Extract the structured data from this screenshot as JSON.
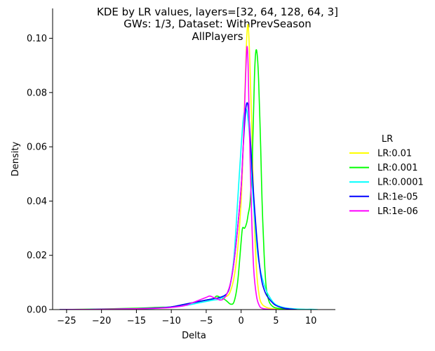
{
  "chart_data": {
    "type": "line",
    "title_lines": [
      "KDE by LR values, layers=[32, 64, 128, 64, 3]",
      "GWs: 1/3, Dataset: WithPrevSeason",
      "AllPlayers"
    ],
    "xlabel": "Delta",
    "ylabel": "Density",
    "xlim": [
      -27,
      13.5
    ],
    "ylim": [
      0,
      0.111
    ],
    "xticks": [
      -25,
      -20,
      -15,
      -10,
      -5,
      0,
      5,
      10
    ],
    "xtick_labels": [
      "−25",
      "−20",
      "−15",
      "−10",
      "−5",
      "0",
      "5",
      "10"
    ],
    "yticks": [
      0.0,
      0.02,
      0.04,
      0.06,
      0.08,
      0.1
    ],
    "ytick_labels": [
      "0.00",
      "0.02",
      "0.04",
      "0.06",
      "0.08",
      "0.10"
    ],
    "grid": false,
    "legend": {
      "title": "LR",
      "placement": "right"
    },
    "series": [
      {
        "name": "LR:0.01",
        "color": "#ffff00",
        "x": [
          -26,
          -20,
          -15,
          -12,
          -10,
          -8,
          -6,
          -5,
          -4,
          -3,
          -2,
          -1.5,
          -1,
          -0.5,
          0,
          0.3,
          0.6,
          0.8,
          1.0,
          1.2,
          1.5,
          1.8,
          2.2,
          2.6,
          3.0,
          3.5,
          4,
          5,
          6,
          8
        ],
        "y": [
          0.0,
          0.0001,
          0.0003,
          0.0006,
          0.001,
          0.002,
          0.003,
          0.0035,
          0.004,
          0.0045,
          0.005,
          0.007,
          0.012,
          0.022,
          0.04,
          0.06,
          0.085,
          0.1,
          0.105,
          0.095,
          0.07,
          0.04,
          0.015,
          0.005,
          0.002,
          0.001,
          0.0005,
          0.0002,
          0.0001,
          0.0
        ]
      },
      {
        "name": "LR:0.001",
        "color": "#00ff00",
        "x": [
          -26,
          -20,
          -15,
          -12,
          -10,
          -8,
          -6,
          -5,
          -4,
          -3.5,
          -3,
          -2.5,
          -2,
          -1.5,
          -1,
          -0.5,
          0,
          0.2,
          0.5,
          0.8,
          1.0,
          1.3,
          1.6,
          1.9,
          2.1,
          2.3,
          2.5,
          2.8,
          3.0,
          3.3,
          3.6,
          4,
          4.5,
          5,
          6,
          7,
          8,
          9
        ],
        "y": [
          0.0,
          0.0002,
          0.0005,
          0.0008,
          0.001,
          0.002,
          0.003,
          0.0035,
          0.004,
          0.005,
          0.0045,
          0.004,
          0.003,
          0.002,
          0.003,
          0.01,
          0.025,
          0.03,
          0.03,
          0.032,
          0.035,
          0.04,
          0.055,
          0.085,
          0.095,
          0.094,
          0.085,
          0.06,
          0.04,
          0.02,
          0.008,
          0.003,
          0.0012,
          0.0006,
          0.0003,
          0.0001,
          0.0001,
          0.0
        ]
      },
      {
        "name": "LR:0.0001",
        "color": "#00ffff",
        "x": [
          -26,
          -20,
          -15,
          -12,
          -10,
          -8,
          -6,
          -5,
          -4,
          -3,
          -2,
          -1.5,
          -1,
          -0.5,
          0,
          0.3,
          0.6,
          0.9,
          1.2,
          1.5,
          1.8,
          2.1,
          2.4,
          2.8,
          3.2,
          3.6,
          4,
          4.5,
          5,
          6,
          7,
          8,
          9,
          10,
          11
        ],
        "y": [
          0.0,
          0.0001,
          0.0002,
          0.0005,
          0.001,
          0.0015,
          0.0025,
          0.003,
          0.0035,
          0.004,
          0.006,
          0.01,
          0.02,
          0.04,
          0.06,
          0.07,
          0.074,
          0.072,
          0.064,
          0.05,
          0.038,
          0.028,
          0.02,
          0.014,
          0.01,
          0.007,
          0.005,
          0.003,
          0.0018,
          0.0008,
          0.0004,
          0.0002,
          0.0001,
          0.0001,
          0.0
        ]
      },
      {
        "name": "LR:1e-05",
        "color": "#0000ff",
        "x": [
          -26,
          -20,
          -15,
          -12,
          -10,
          -8,
          -6,
          -5,
          -4,
          -3,
          -2,
          -1.5,
          -1,
          -0.5,
          0,
          0.3,
          0.6,
          0.8,
          1.0,
          1.2,
          1.5,
          1.8,
          2.2,
          2.6,
          3.0,
          3.5,
          4,
          4.5,
          5,
          6,
          7,
          8
        ],
        "y": [
          0.0,
          0.0001,
          0.0003,
          0.0006,
          0.001,
          0.002,
          0.003,
          0.0035,
          0.004,
          0.0045,
          0.006,
          0.01,
          0.018,
          0.03,
          0.045,
          0.06,
          0.072,
          0.076,
          0.075,
          0.068,
          0.055,
          0.042,
          0.028,
          0.017,
          0.01,
          0.006,
          0.004,
          0.0025,
          0.0015,
          0.0006,
          0.0002,
          0.0
        ]
      },
      {
        "name": "LR:1e-06",
        "color": "#ff00ff",
        "x": [
          -26,
          -20,
          -15,
          -12,
          -10,
          -8,
          -7,
          -6,
          -5,
          -4.5,
          -4,
          -3.5,
          -3,
          -2.5,
          -2,
          -1.5,
          -1,
          -0.5,
          0,
          0.3,
          0.5,
          0.7,
          0.85,
          1.0,
          1.2,
          1.5,
          1.8,
          2.2,
          2.6,
          3,
          4,
          5
        ],
        "y": [
          0.0,
          0.0001,
          0.0003,
          0.0005,
          0.0008,
          0.0015,
          0.0025,
          0.0035,
          0.0045,
          0.005,
          0.0045,
          0.004,
          0.0035,
          0.004,
          0.006,
          0.01,
          0.018,
          0.03,
          0.045,
          0.06,
          0.075,
          0.09,
          0.097,
          0.09,
          0.065,
          0.035,
          0.015,
          0.005,
          0.0015,
          0.0005,
          0.0001,
          0.0
        ]
      }
    ]
  }
}
